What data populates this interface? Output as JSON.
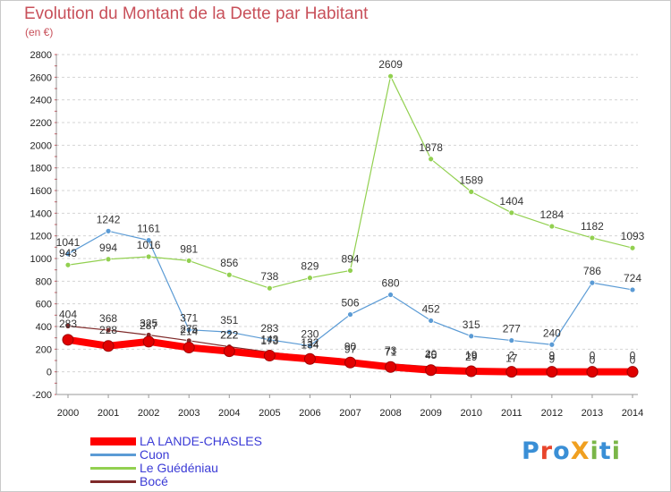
{
  "title": "Evolution du Montant de la Dette par Habitant",
  "subtitle": "(en €)",
  "logo": {
    "text": "ProXiti",
    "colors": [
      "#3a8fd6",
      "#e8452c",
      "#3a8fd6",
      "#f0a020",
      "#7ab648",
      "#3a8fd6",
      "#7ab648"
    ]
  },
  "chart_data": {
    "type": "line",
    "categories": [
      "2000",
      "2001",
      "2002",
      "2003",
      "2004",
      "2005",
      "2006",
      "2007",
      "2008",
      "2009",
      "2010",
      "2011",
      "2012",
      "2013",
      "2014"
    ],
    "ylim": [
      -200,
      2800
    ],
    "yticks": [
      -200,
      0,
      200,
      400,
      600,
      800,
      1000,
      1200,
      1400,
      1600,
      1800,
      2000,
      2200,
      2400,
      2600,
      2800
    ],
    "grid": true,
    "legend_position": "bottom-left",
    "series": [
      {
        "name": "LA LANDE-CHASLES",
        "color": "#ff0000",
        "width": 8,
        "show_labels": false,
        "values": [
          283,
          228,
          267,
          214,
          182,
          143,
          114,
          82,
          43,
          15,
          5,
          0,
          0,
          0,
          0
        ]
      },
      {
        "name": "Cuon",
        "color": "#5b9bd5",
        "width": 1.2,
        "show_labels": true,
        "values": [
          1041,
          1242,
          1161,
          371,
          351,
          283,
          230,
          506,
          680,
          452,
          315,
          277,
          240,
          786,
          724
        ]
      },
      {
        "name": "Le Guédéniau",
        "color": "#92d050",
        "width": 1.2,
        "show_labels": true,
        "values": [
          943,
          994,
          1016,
          981,
          856,
          738,
          829,
          894,
          2609,
          1878,
          1589,
          1404,
          1284,
          1182,
          1093
        ]
      },
      {
        "name": "Bocé",
        "color": "#7f2a2a",
        "width": 1.2,
        "show_labels": true,
        "values": [
          404,
          368,
          325,
          275,
          222,
          173,
          134,
          97,
          71,
          45,
          29,
          17,
          9,
          0,
          0
        ]
      }
    ],
    "extra_labels": [
      "283",
      "228",
      "287",
      "214",
      "222",
      "143",
      "132",
      "90",
      "73",
      "20",
      "19",
      "2",
      "9",
      "0",
      "0"
    ]
  }
}
